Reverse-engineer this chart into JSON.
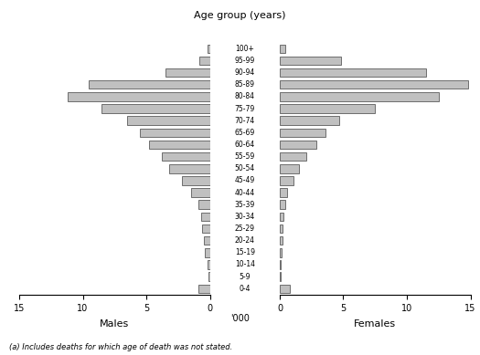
{
  "age_groups": [
    "100+",
    "95-99",
    "90-94",
    "85-89",
    "80-84",
    "75-79",
    "70-74",
    "65-69",
    "60-64",
    "55-59",
    "50-54",
    "45-49",
    "40-44",
    "35-39",
    "30-34",
    "25-29",
    "20-24",
    "15-19",
    "10-14",
    "5-9",
    "0-4"
  ],
  "males": [
    0.2,
    0.8,
    3.5,
    9.5,
    11.2,
    8.5,
    6.5,
    5.5,
    4.8,
    3.8,
    3.2,
    2.2,
    1.5,
    0.9,
    0.7,
    0.6,
    0.5,
    0.4,
    0.15,
    0.1,
    0.9
  ],
  "females": [
    0.4,
    4.8,
    11.5,
    14.8,
    12.5,
    7.5,
    4.7,
    3.6,
    2.9,
    2.1,
    1.5,
    1.1,
    0.6,
    0.4,
    0.3,
    0.25,
    0.2,
    0.18,
    0.1,
    0.08,
    0.8
  ],
  "bar_color": "#c0c0c0",
  "bar_edgecolor": "#404040",
  "title": "Age group (years)",
  "xlabel_males": "Males",
  "xlabel_females": "Females",
  "xlabel_unit": "'000",
  "xlim": 15,
  "xticks": [
    0,
    5,
    10,
    15
  ],
  "footnote": "(a) Includes deaths for which age of death was not stated.",
  "background_color": "#ffffff",
  "bar_linewidth": 0.5
}
